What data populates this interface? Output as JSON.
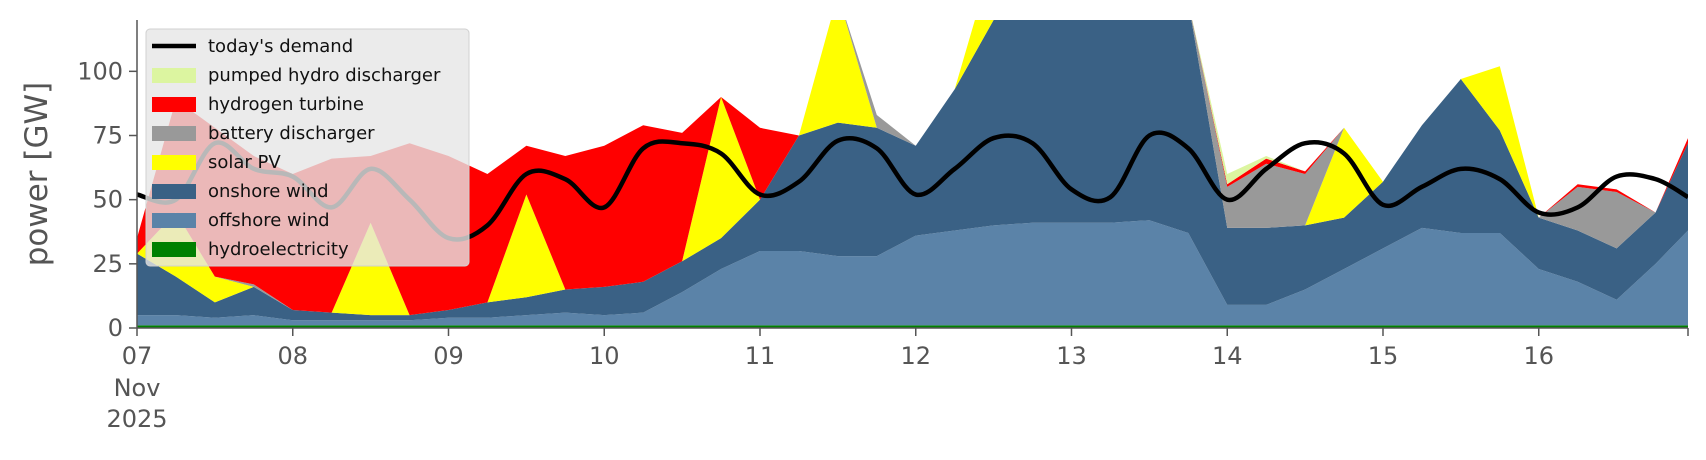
{
  "chart_data": {
    "type": "area",
    "ylabel": "power [GW]",
    "ylim": [
      0,
      120
    ],
    "xlim": [
      "2025-11-07T00:00",
      "2025-11-16T23:00"
    ],
    "y_ticks": [
      0,
      25,
      50,
      75,
      100
    ],
    "x_ticks": [
      {
        "x": "2025-11-07",
        "label": "07",
        "label_month": "Nov",
        "label_year": "2025"
      },
      {
        "x": "2025-11-08",
        "label": "08"
      },
      {
        "x": "2025-11-09",
        "label": "09"
      },
      {
        "x": "2025-11-10",
        "label": "10"
      },
      {
        "x": "2025-11-11",
        "label": "11"
      },
      {
        "x": "2025-11-12",
        "label": "12"
      },
      {
        "x": "2025-11-13",
        "label": "13"
      },
      {
        "x": "2025-11-14",
        "label": "14"
      },
      {
        "x": "2025-11-15",
        "label": "15"
      },
      {
        "x": "2025-11-16",
        "label": "16"
      }
    ],
    "x": [
      "2025-11-07T00:00",
      "2025-11-07T06:00",
      "2025-11-07T12:00",
      "2025-11-07T18:00",
      "2025-11-08T00:00",
      "2025-11-08T06:00",
      "2025-11-08T12:00",
      "2025-11-08T18:00",
      "2025-11-09T00:00",
      "2025-11-09T06:00",
      "2025-11-09T12:00",
      "2025-11-09T18:00",
      "2025-11-10T00:00",
      "2025-11-10T06:00",
      "2025-11-10T12:00",
      "2025-11-10T18:00",
      "2025-11-11T00:00",
      "2025-11-11T06:00",
      "2025-11-11T12:00",
      "2025-11-11T18:00",
      "2025-11-12T00:00",
      "2025-11-12T06:00",
      "2025-11-12T12:00",
      "2025-11-12T18:00",
      "2025-11-13T00:00",
      "2025-11-13T06:00",
      "2025-11-13T12:00",
      "2025-11-13T18:00",
      "2025-11-14T00:00",
      "2025-11-14T06:00",
      "2025-11-14T12:00",
      "2025-11-14T18:00",
      "2025-11-15T00:00",
      "2025-11-15T06:00",
      "2025-11-15T12:00",
      "2025-11-15T18:00",
      "2025-11-16T00:00",
      "2025-11-16T06:00",
      "2025-11-16T12:00",
      "2025-11-16T18:00",
      "2025-11-16T23:00"
    ],
    "series": [
      {
        "name": "hydroelectricity",
        "color": "#008000",
        "values": [
          1,
          1,
          1,
          1,
          1,
          1,
          1,
          1,
          1,
          1,
          1,
          1,
          1,
          1,
          1,
          1,
          1,
          1,
          1,
          1,
          1,
          1,
          1,
          1,
          1,
          1,
          1,
          1,
          1,
          1,
          1,
          1,
          1,
          1,
          1,
          1,
          1,
          1,
          1,
          1,
          1
        ]
      },
      {
        "name": "offshore wind",
        "color": "#5b83a8",
        "values": [
          4,
          4,
          3,
          4,
          2,
          2,
          2,
          2,
          3,
          3,
          4,
          5,
          4,
          5,
          13,
          22,
          29,
          29,
          27,
          27,
          35,
          37,
          39,
          40,
          40,
          40,
          41,
          36,
          8,
          8,
          14,
          22,
          30,
          38,
          36,
          36,
          22,
          17,
          10,
          24,
          37
        ]
      },
      {
        "name": "onshore wind",
        "color": "#3a6185",
        "values": [
          24,
          15,
          6,
          11,
          4,
          3,
          2,
          2,
          3,
          6,
          7,
          9,
          11,
          12,
          12,
          12,
          20,
          45,
          52,
          50,
          35,
          55,
          80,
          110,
          125,
          130,
          120,
          90,
          30,
          30,
          25,
          20,
          26,
          40,
          60,
          40,
          20,
          20,
          20,
          20,
          34
        ]
      },
      {
        "name": "solar PV",
        "color": "#ffff00",
        "values": [
          0,
          25,
          10,
          0,
          0,
          0,
          36,
          0,
          0,
          0,
          40,
          0,
          0,
          0,
          0,
          55,
          0,
          0,
          50,
          0,
          0,
          0,
          25,
          0,
          0,
          0,
          0,
          0,
          0,
          0,
          0,
          35,
          0,
          0,
          0,
          25,
          0,
          0,
          0,
          0,
          0
        ]
      },
      {
        "name": "battery discharger",
        "color": "#999999",
        "values": [
          0,
          0,
          0,
          1,
          0,
          0,
          0,
          0,
          0,
          0,
          0,
          0,
          0,
          0,
          0,
          0,
          0,
          0,
          0,
          5,
          0,
          0,
          0,
          0,
          0,
          0,
          0,
          0,
          16,
          25,
          20,
          0,
          0,
          0,
          0,
          0,
          0,
          17,
          22,
          0,
          0
        ]
      },
      {
        "name": "hydrogen turbine",
        "color": "#ff0000",
        "values": [
          6,
          44,
          58,
          50,
          53,
          60,
          26,
          67,
          60,
          50,
          19,
          52,
          55,
          61,
          50,
          0,
          28,
          0,
          0,
          0,
          0,
          0,
          0,
          0,
          0,
          0,
          0,
          0,
          1,
          2,
          1,
          0,
          0,
          0,
          0,
          0,
          0,
          1,
          1,
          0,
          2
        ]
      },
      {
        "name": "pumped hydro discharger",
        "color": "#dcf5a0",
        "values": [
          0,
          0,
          0,
          0,
          0,
          0,
          0,
          0,
          0,
          0,
          0,
          0,
          0,
          0,
          0,
          0,
          0,
          0,
          0,
          0,
          0,
          0,
          0,
          0,
          0,
          0,
          0,
          0,
          4,
          1,
          0,
          0,
          0,
          0,
          0,
          0,
          0,
          0,
          0,
          0,
          0
        ]
      }
    ],
    "demand": {
      "name": "today's demand",
      "color": "#000000",
      "values": [
        52,
        50,
        72,
        62,
        59,
        47,
        62,
        50,
        35,
        40,
        60,
        58,
        47,
        70,
        72,
        68,
        52,
        57,
        73,
        70,
        52,
        62,
        74,
        72,
        54,
        51,
        75,
        70,
        50,
        62,
        72,
        68,
        48,
        55,
        62,
        58,
        45,
        47,
        59,
        58,
        51
      ]
    },
    "legend": {
      "placement": "upper left",
      "entries": [
        {
          "label": "today's demand",
          "color": "#000000",
          "kind": "line"
        },
        {
          "label": "pumped hydro discharger",
          "color": "#dcf5a0",
          "kind": "patch"
        },
        {
          "label": "hydrogen turbine",
          "color": "#ff0000",
          "kind": "patch"
        },
        {
          "label": "battery discharger",
          "color": "#999999",
          "kind": "patch"
        },
        {
          "label": "solar PV",
          "color": "#ffff00",
          "kind": "patch"
        },
        {
          "label": "onshore wind",
          "color": "#3a6185",
          "kind": "patch"
        },
        {
          "label": "offshore wind",
          "color": "#5b83a8",
          "kind": "patch"
        },
        {
          "label": "hydroelectricity",
          "color": "#008000",
          "kind": "patch"
        }
      ]
    },
    "grid": false
  }
}
